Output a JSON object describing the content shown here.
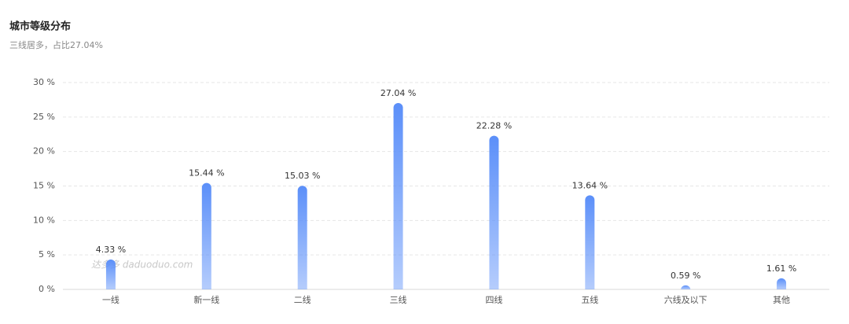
{
  "chart_data": {
    "type": "bar",
    "title": "城市等级分布",
    "subtitle": "三线居多，占比27.04%",
    "categories": [
      "一线",
      "新一线",
      "二线",
      "三线",
      "四线",
      "五线",
      "六线及以下",
      "其他"
    ],
    "values": [
      4.33,
      15.44,
      15.03,
      27.04,
      22.28,
      13.64,
      0.59,
      1.61
    ],
    "value_labels": [
      "4.33 %",
      "15.44 %",
      "15.03 %",
      "27.04 %",
      "22.28 %",
      "13.64 %",
      "0.59 %",
      "1.61 %"
    ],
    "color": "#5b8ff9",
    "ylim": [
      0,
      30
    ],
    "yticks": [
      {
        "value": 0,
        "label": "0 %"
      },
      {
        "value": 5,
        "label": "5 %"
      },
      {
        "value": 10,
        "label": "10 %"
      },
      {
        "value": 15,
        "label": "15 %"
      },
      {
        "value": 20,
        "label": "20 %"
      },
      {
        "value": 25,
        "label": "25 %"
      },
      {
        "value": 30,
        "label": "30 %"
      }
    ],
    "grid": true,
    "watermark": "达多多 daduoduo.com"
  }
}
